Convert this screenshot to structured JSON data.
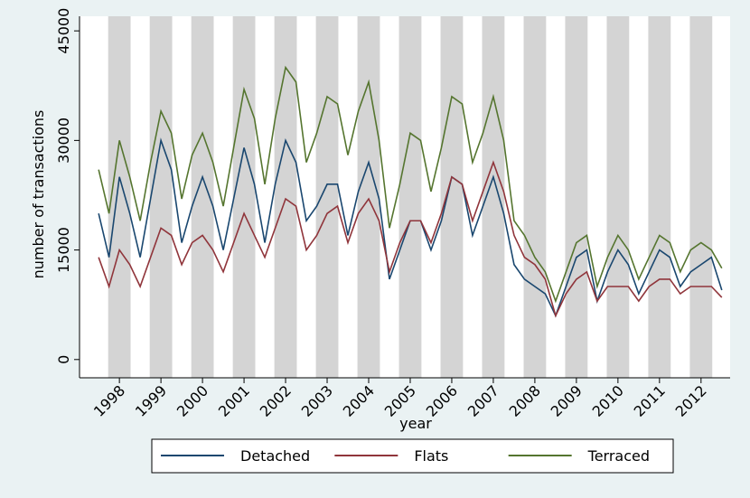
{
  "chart_data": {
    "type": "line",
    "y_label": "number of transactions",
    "x_label": "year",
    "x": [
      1997.5,
      1997.75,
      1998,
      1998.25,
      1998.5,
      1998.75,
      1999,
      1999.25,
      1999.5,
      1999.75,
      2000,
      2000.25,
      2000.5,
      2000.75,
      2001,
      2001.25,
      2001.5,
      2001.75,
      2002,
      2002.25,
      2002.5,
      2002.75,
      2003,
      2003.25,
      2003.5,
      2003.75,
      2004,
      2004.25,
      2004.5,
      2004.75,
      2005,
      2005.25,
      2005.5,
      2005.75,
      2006,
      2006.25,
      2006.5,
      2006.75,
      2007,
      2007.25,
      2007.5,
      2007.75,
      2008,
      2008.25,
      2008.5,
      2008.75,
      2009,
      2009.25,
      2009.5,
      2009.75,
      2010,
      2010.25,
      2010.5,
      2010.75,
      2011,
      2011.25,
      2011.5,
      2011.75,
      2012,
      2012.25,
      2012.5
    ],
    "series": [
      {
        "name": "Detached",
        "color": "#1a476f",
        "values": [
          20000,
          14000,
          25000,
          20000,
          14000,
          22000,
          30000,
          26000,
          16000,
          21000,
          25000,
          21000,
          15000,
          22000,
          29000,
          24000,
          16000,
          24000,
          30000,
          27000,
          19000,
          21000,
          24000,
          24000,
          17000,
          23000,
          27000,
          22000,
          11000,
          15000,
          19000,
          19000,
          15000,
          19000,
          25000,
          24000,
          17000,
          21000,
          25000,
          20000,
          13000,
          11000,
          10000,
          9000,
          6000,
          10000,
          14000,
          15000,
          8000,
          12000,
          15000,
          13000,
          9000,
          12000,
          15000,
          14000,
          10000,
          12000,
          13000,
          14000,
          9500
        ]
      },
      {
        "name": "Flats",
        "color": "#90353b",
        "values": [
          14000,
          10000,
          15000,
          13000,
          10000,
          14000,
          18000,
          17000,
          13000,
          16000,
          17000,
          15000,
          12000,
          16000,
          20000,
          17000,
          14000,
          18000,
          22000,
          21000,
          15000,
          17000,
          20000,
          21000,
          16000,
          20000,
          22000,
          19000,
          12000,
          16000,
          19000,
          19000,
          16000,
          20000,
          25000,
          24000,
          19000,
          23000,
          27000,
          23000,
          17000,
          14000,
          13000,
          11000,
          6000,
          9000,
          11000,
          12000,
          8000,
          10000,
          10000,
          10000,
          8000,
          10000,
          11000,
          11000,
          9000,
          10000,
          10000,
          10000,
          8500
        ]
      },
      {
        "name": "Terraced",
        "color": "#55752f",
        "values": [
          26000,
          20000,
          30000,
          25000,
          19000,
          27000,
          34000,
          31000,
          22000,
          28000,
          31000,
          27000,
          21000,
          29000,
          37000,
          33000,
          24000,
          33000,
          40000,
          38000,
          27000,
          31000,
          36000,
          35000,
          28000,
          34000,
          38000,
          30000,
          18000,
          24000,
          31000,
          30000,
          23000,
          29000,
          36000,
          35000,
          27000,
          31000,
          36000,
          30000,
          19000,
          17000,
          14000,
          12000,
          8000,
          12000,
          16000,
          17000,
          10000,
          14000,
          17000,
          15000,
          11000,
          14000,
          17000,
          16000,
          12000,
          15000,
          16000,
          15000,
          12500
        ]
      }
    ],
    "xlim": [
      1997.04,
      2012.7
    ],
    "xticks": [
      1998,
      1999,
      2000,
      2001,
      2002,
      2003,
      2004,
      2005,
      2006,
      2007,
      2008,
      2009,
      2010,
      2011,
      2012
    ],
    "ylim": [
      -2500,
      47000
    ],
    "yticks": [
      0,
      15000,
      30000,
      45000
    ],
    "grid": false,
    "legend": "bottom"
  }
}
